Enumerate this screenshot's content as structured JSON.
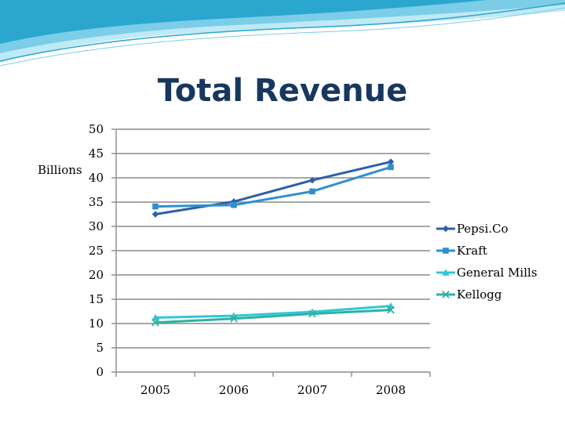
{
  "colors": {
    "banner_light": "#bfe9f5",
    "banner_mid": "#7ccde8",
    "banner_dark": "#2aa6cf",
    "title": "#17375e"
  },
  "chart_data": {
    "type": "line",
    "title": "Total Revenue",
    "xlabel": "",
    "ylabel": "Billions",
    "categories": [
      "2005",
      "2006",
      "2007",
      "2008"
    ],
    "ylim": [
      0,
      50
    ],
    "yticks": [
      "0",
      "5",
      "10",
      "15",
      "20",
      "25",
      "30",
      "35",
      "40",
      "45",
      "50"
    ],
    "grid": true,
    "legend_position": "right",
    "series": [
      {
        "name": "Pepsi.Co",
        "values": [
          32.5,
          35.1,
          39.5,
          43.3
        ],
        "color": "#2e5fa8",
        "marker": "diamond"
      },
      {
        "name": "Kraft",
        "values": [
          34.1,
          34.4,
          37.2,
          42.2
        ],
        "color": "#2f8fd0",
        "marker": "square"
      },
      {
        "name": "General Mills",
        "values": [
          11.2,
          11.6,
          12.4,
          13.6
        ],
        "color": "#2fc7d6",
        "marker": "triangle"
      },
      {
        "name": "Kellogg",
        "values": [
          10.2,
          11.0,
          12.0,
          12.8
        ],
        "color": "#2bb3a0",
        "marker": "x"
      }
    ]
  }
}
